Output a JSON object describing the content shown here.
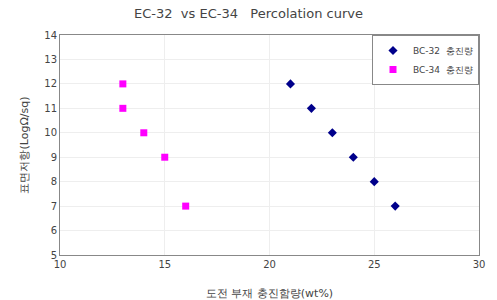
{
  "chart_data": {
    "type": "scatter",
    "title": "EC-32  vs EC-34   Percolation curve",
    "x_label": "도전 부재 충진함량(wt%)",
    "y_label": "표면저항(LogΩ/sq)",
    "xlim": [
      10,
      30
    ],
    "ylim": [
      5,
      14
    ],
    "xticks": [
      10,
      15,
      20,
      25,
      30
    ],
    "yticks": [
      5,
      6,
      7,
      8,
      9,
      10,
      11,
      12,
      13,
      14
    ],
    "grid": true,
    "legend": "upper right",
    "series": [
      {
        "name": "BC-32  충진량",
        "color": "#00008B",
        "marker": "diamond",
        "x": [
          21,
          22,
          23,
          24,
          25,
          26
        ],
        "values": [
          12,
          11,
          10,
          9,
          8,
          7
        ]
      },
      {
        "name": "BC-34  충진량",
        "color": "#FF00FF",
        "marker": "square",
        "x": [
          13,
          13,
          14,
          15,
          16
        ],
        "values": [
          12,
          11,
          10,
          9,
          7
        ]
      }
    ]
  }
}
